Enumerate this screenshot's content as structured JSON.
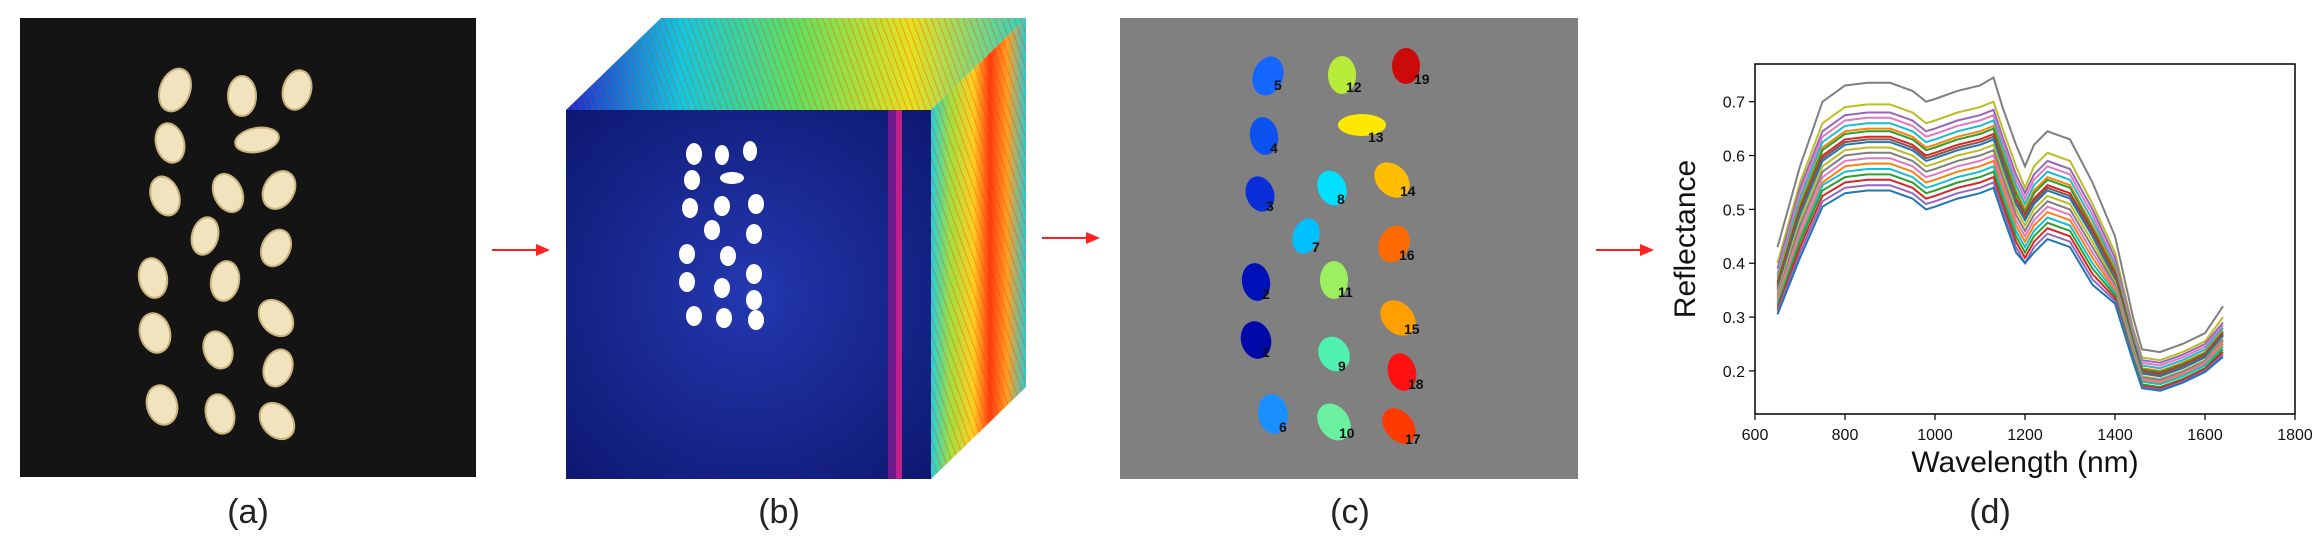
{
  "captions": {
    "a": "(a)",
    "b": "(b)",
    "c": "(c)",
    "d": "(d)"
  },
  "colors": {
    "arrow": "#ff2020",
    "gray_bg": "#808080",
    "black_bg": "#141414"
  },
  "labels_c": [
    {
      "t": "5"
    },
    {
      "t": "12"
    },
    {
      "t": "19"
    },
    {
      "t": "4"
    },
    {
      "t": "13"
    },
    {
      "t": "3"
    },
    {
      "t": "8"
    },
    {
      "t": "14"
    },
    {
      "t": "7"
    },
    {
      "t": "16"
    },
    {
      "t": "2"
    },
    {
      "t": "11"
    },
    {
      "t": "15"
    },
    {
      "t": "1"
    },
    {
      "t": "9"
    },
    {
      "t": "18"
    },
    {
      "t": "6"
    },
    {
      "t": "10"
    },
    {
      "t": "17"
    }
  ],
  "chart_data": {
    "type": "line",
    "xlabel": "Wavelength (nm)",
    "ylabel": "Reflectance",
    "xlim": [
      600,
      1800
    ],
    "ylim": [
      0.12,
      0.77
    ],
    "xticks": [
      "600",
      "800",
      "1000",
      "1200",
      "1400",
      "1600",
      "1800"
    ],
    "yticks": [
      "0.2",
      "0.3",
      "0.4",
      "0.5",
      "0.6",
      "0.7"
    ],
    "x": [
      650,
      700,
      750,
      800,
      850,
      900,
      950,
      980,
      1000,
      1050,
      1100,
      1130,
      1150,
      1180,
      1200,
      1220,
      1250,
      1300,
      1350,
      1400,
      1440,
      1460,
      1500,
      1550,
      1600,
      1640
    ],
    "series": [
      {
        "color": "#7f7f7f",
        "values": [
          0.43,
          0.58,
          0.7,
          0.73,
          0.735,
          0.735,
          0.72,
          0.7,
          0.705,
          0.72,
          0.73,
          0.745,
          0.69,
          0.62,
          0.58,
          0.62,
          0.645,
          0.63,
          0.55,
          0.45,
          0.3,
          0.24,
          0.235,
          0.25,
          0.27,
          0.32
        ]
      },
      {
        "color": "#bcbd22",
        "values": [
          0.4,
          0.55,
          0.66,
          0.69,
          0.695,
          0.695,
          0.68,
          0.66,
          0.665,
          0.68,
          0.69,
          0.7,
          0.65,
          0.58,
          0.54,
          0.58,
          0.605,
          0.59,
          0.51,
          0.42,
          0.28,
          0.225,
          0.22,
          0.235,
          0.255,
          0.3
        ]
      },
      {
        "color": "#9467bd",
        "values": [
          0.39,
          0.54,
          0.645,
          0.675,
          0.68,
          0.68,
          0.665,
          0.645,
          0.65,
          0.665,
          0.675,
          0.685,
          0.635,
          0.565,
          0.53,
          0.565,
          0.59,
          0.575,
          0.5,
          0.41,
          0.275,
          0.22,
          0.215,
          0.23,
          0.25,
          0.29
        ]
      },
      {
        "color": "#e377c2",
        "values": [
          0.38,
          0.53,
          0.635,
          0.665,
          0.67,
          0.67,
          0.655,
          0.635,
          0.64,
          0.655,
          0.665,
          0.675,
          0.625,
          0.555,
          0.52,
          0.555,
          0.58,
          0.565,
          0.49,
          0.4,
          0.27,
          0.215,
          0.21,
          0.225,
          0.245,
          0.285
        ]
      },
      {
        "color": "#17becf",
        "values": [
          0.375,
          0.52,
          0.625,
          0.655,
          0.66,
          0.66,
          0.645,
          0.625,
          0.63,
          0.645,
          0.655,
          0.665,
          0.615,
          0.545,
          0.51,
          0.545,
          0.57,
          0.555,
          0.48,
          0.395,
          0.265,
          0.21,
          0.205,
          0.22,
          0.24,
          0.28
        ]
      },
      {
        "color": "#ff7f0e",
        "values": [
          0.37,
          0.51,
          0.615,
          0.645,
          0.65,
          0.65,
          0.635,
          0.615,
          0.62,
          0.635,
          0.645,
          0.655,
          0.605,
          0.535,
          0.5,
          0.535,
          0.56,
          0.545,
          0.47,
          0.39,
          0.26,
          0.205,
          0.2,
          0.215,
          0.235,
          0.275
        ]
      },
      {
        "color": "#2ca02c",
        "values": [
          0.365,
          0.505,
          0.61,
          0.64,
          0.645,
          0.645,
          0.63,
          0.61,
          0.615,
          0.63,
          0.64,
          0.65,
          0.6,
          0.53,
          0.495,
          0.53,
          0.555,
          0.54,
          0.465,
          0.385,
          0.258,
          0.203,
          0.198,
          0.213,
          0.233,
          0.272
        ]
      },
      {
        "color": "#d62728",
        "values": [
          0.36,
          0.5,
          0.6,
          0.63,
          0.635,
          0.635,
          0.62,
          0.6,
          0.605,
          0.62,
          0.63,
          0.64,
          0.59,
          0.52,
          0.49,
          0.52,
          0.545,
          0.53,
          0.46,
          0.38,
          0.255,
          0.2,
          0.195,
          0.21,
          0.23,
          0.27
        ]
      },
      {
        "color": "#8c564b",
        "values": [
          0.355,
          0.495,
          0.595,
          0.625,
          0.63,
          0.63,
          0.615,
          0.595,
          0.6,
          0.615,
          0.625,
          0.635,
          0.585,
          0.515,
          0.485,
          0.515,
          0.54,
          0.525,
          0.455,
          0.375,
          0.252,
          0.198,
          0.193,
          0.208,
          0.228,
          0.267
        ]
      },
      {
        "color": "#1f77b4",
        "values": [
          0.35,
          0.49,
          0.59,
          0.62,
          0.625,
          0.625,
          0.61,
          0.59,
          0.595,
          0.61,
          0.62,
          0.63,
          0.58,
          0.51,
          0.48,
          0.51,
          0.535,
          0.52,
          0.45,
          0.37,
          0.25,
          0.195,
          0.19,
          0.205,
          0.225,
          0.265
        ]
      },
      {
        "color": "#bcbd22",
        "values": [
          0.345,
          0.48,
          0.58,
          0.61,
          0.615,
          0.615,
          0.6,
          0.58,
          0.585,
          0.6,
          0.61,
          0.62,
          0.57,
          0.5,
          0.47,
          0.5,
          0.525,
          0.51,
          0.44,
          0.365,
          0.245,
          0.19,
          0.185,
          0.2,
          0.22,
          0.26
        ]
      },
      {
        "color": "#7f7f7f",
        "values": [
          0.34,
          0.47,
          0.57,
          0.6,
          0.605,
          0.605,
          0.59,
          0.57,
          0.575,
          0.59,
          0.6,
          0.61,
          0.56,
          0.49,
          0.46,
          0.49,
          0.515,
          0.5,
          0.43,
          0.36,
          0.24,
          0.188,
          0.183,
          0.198,
          0.218,
          0.257
        ]
      },
      {
        "color": "#e377c2",
        "values": [
          0.335,
          0.46,
          0.56,
          0.59,
          0.595,
          0.595,
          0.58,
          0.56,
          0.565,
          0.58,
          0.59,
          0.6,
          0.55,
          0.48,
          0.45,
          0.48,
          0.505,
          0.49,
          0.42,
          0.355,
          0.235,
          0.185,
          0.18,
          0.195,
          0.215,
          0.254
        ]
      },
      {
        "color": "#ff7f0e",
        "values": [
          0.33,
          0.45,
          0.55,
          0.58,
          0.585,
          0.585,
          0.57,
          0.55,
          0.555,
          0.57,
          0.58,
          0.59,
          0.54,
          0.47,
          0.44,
          0.47,
          0.495,
          0.48,
          0.41,
          0.35,
          0.23,
          0.182,
          0.177,
          0.192,
          0.212,
          0.25
        ]
      },
      {
        "color": "#17becf",
        "values": [
          0.325,
          0.445,
          0.545,
          0.57,
          0.575,
          0.575,
          0.56,
          0.54,
          0.545,
          0.56,
          0.57,
          0.58,
          0.53,
          0.46,
          0.43,
          0.46,
          0.485,
          0.47,
          0.4,
          0.345,
          0.228,
          0.18,
          0.175,
          0.19,
          0.21,
          0.245
        ]
      },
      {
        "color": "#2ca02c",
        "values": [
          0.32,
          0.44,
          0.535,
          0.56,
          0.565,
          0.565,
          0.55,
          0.53,
          0.535,
          0.55,
          0.56,
          0.57,
          0.52,
          0.45,
          0.42,
          0.45,
          0.475,
          0.46,
          0.39,
          0.34,
          0.225,
          0.175,
          0.17,
          0.185,
          0.205,
          0.24
        ]
      },
      {
        "color": "#d62728",
        "values": [
          0.315,
          0.43,
          0.525,
          0.55,
          0.555,
          0.555,
          0.54,
          0.52,
          0.525,
          0.54,
          0.55,
          0.56,
          0.51,
          0.44,
          0.41,
          0.44,
          0.465,
          0.45,
          0.38,
          0.335,
          0.222,
          0.172,
          0.168,
          0.183,
          0.203,
          0.235
        ]
      },
      {
        "color": "#9467bd",
        "values": [
          0.31,
          0.42,
          0.515,
          0.54,
          0.545,
          0.545,
          0.53,
          0.51,
          0.515,
          0.53,
          0.54,
          0.55,
          0.5,
          0.43,
          0.4,
          0.43,
          0.455,
          0.44,
          0.37,
          0.33,
          0.22,
          0.17,
          0.165,
          0.18,
          0.2,
          0.23
        ]
      },
      {
        "color": "#1f77b4",
        "values": [
          0.305,
          0.41,
          0.505,
          0.53,
          0.535,
          0.535,
          0.52,
          0.5,
          0.505,
          0.52,
          0.53,
          0.54,
          0.49,
          0.42,
          0.4,
          0.42,
          0.445,
          0.43,
          0.36,
          0.325,
          0.218,
          0.168,
          0.163,
          0.178,
          0.198,
          0.226
        ]
      }
    ]
  }
}
